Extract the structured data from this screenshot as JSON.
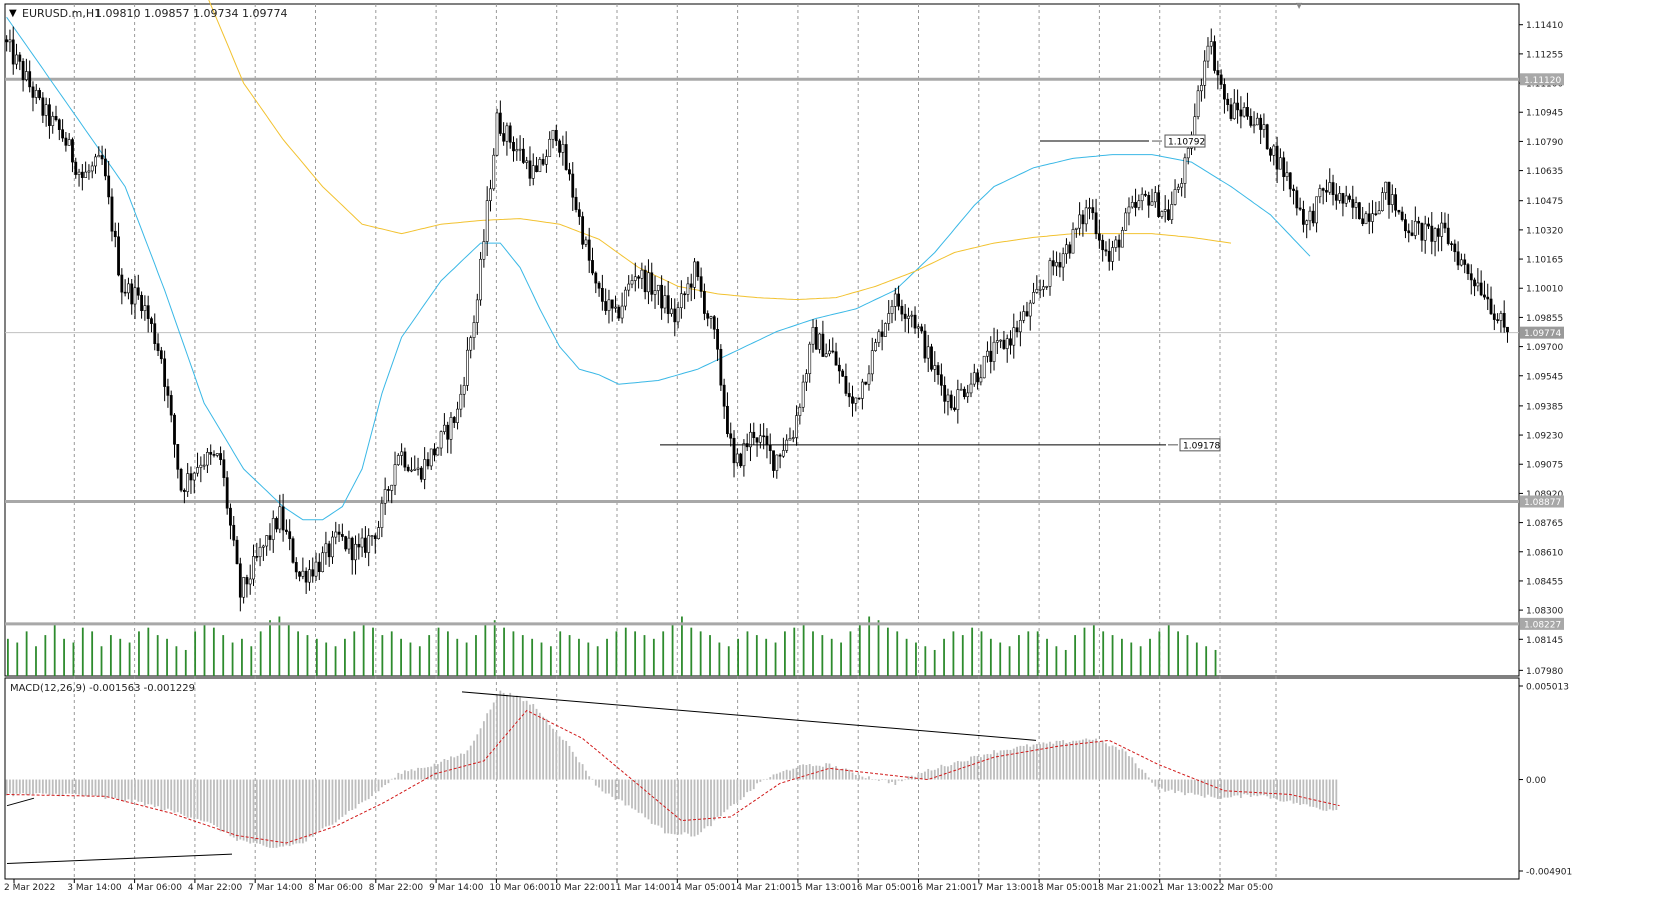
{
  "header": {
    "symbol_label": "EURUSD.m,H1",
    "ohlc_label": "1.09810 1.09857 1.09734 1.09774"
  },
  "indicator": {
    "macd_label": "MACD(12,26,9) -0.001563 -0.001229"
  },
  "colors": {
    "background": "#ffffff",
    "grid": "#9a9a9a",
    "bull_candle": "#ffffff",
    "bear_candle": "#000000",
    "candle_outline": "#000000",
    "ma_fast": "#3ab8e6",
    "ma_slow": "#f2c230",
    "volume": "#2e8b2e",
    "macd_hist": "#bdbdbd",
    "macd_signal": "#d11a1a",
    "hline": "#a8a8a8",
    "trendline": "#000000"
  },
  "chart_data": [
    {
      "type": "candlestick",
      "symbol": "EURUSD.m",
      "timeframe": "H1",
      "price_axis": {
        "ylim": [
          1.0795,
          1.1152
        ],
        "tick_labels": [
          "1.11410",
          "1.11255",
          "1.11100",
          "1.10945",
          "1.10790",
          "1.10635",
          "1.10475",
          "1.10320",
          "1.10165",
          "1.10010",
          "1.09855",
          "1.09700",
          "1.09545",
          "1.09385",
          "1.09230",
          "1.09075",
          "1.08920",
          "1.08765",
          "1.08610",
          "1.08455",
          "1.08300",
          "1.08145",
          "1.07980"
        ]
      },
      "time_axis": {
        "tick_labels": [
          "2 Mar 2022",
          "3 Mar 14:00",
          "4 Mar 06:00",
          "4 Mar 22:00",
          "7 Mar 14:00",
          "8 Mar 06:00",
          "8 Mar 22:00",
          "9 Mar 14:00",
          "10 Mar 06:00",
          "10 Mar 22:00",
          "11 Mar 14:00",
          "14 Mar 05:00",
          "14 Mar 21:00",
          "15 Mar 13:00",
          "16 Mar 05:00",
          "16 Mar 21:00",
          "17 Mar 13:00",
          "18 Mar 05:00",
          "18 Mar 21:00",
          "21 Mar 13:00",
          "22 Mar 05:00"
        ],
        "grid": "dashed-vertical"
      },
      "current_price": "1.09774",
      "horizontal_levels": [
        {
          "price": 1.1112,
          "label": "1.11120"
        },
        {
          "price": 1.08877,
          "label": "1.08877"
        },
        {
          "price": 1.08227,
          "label": "1.08227"
        }
      ],
      "price_labels": [
        {
          "price": 1.10792,
          "label": "1.10792"
        },
        {
          "price": 1.09178,
          "label": "1.09178"
        }
      ],
      "path": [
        [
          0,
          1.1133
        ],
        [
          6,
          1.1115
        ],
        [
          12,
          1.1095
        ],
        [
          18,
          1.1082
        ],
        [
          24,
          1.106
        ],
        [
          30,
          1.1068
        ],
        [
          36,
          1.1002
        ],
        [
          42,
          1.0995
        ],
        [
          48,
          1.0965
        ],
        [
          54,
          1.0895
        ],
        [
          60,
          1.091
        ],
        [
          66,
          1.091
        ],
        [
          72,
          1.0838
        ],
        [
          78,
          1.086
        ],
        [
          84,
          1.088
        ],
        [
          90,
          1.0848
        ],
        [
          96,
          1.0855
        ],
        [
          102,
          1.0868
        ],
        [
          108,
          1.086
        ],
        [
          114,
          1.0875
        ],
        [
          120,
          1.0915
        ],
        [
          126,
          1.0903
        ],
        [
          132,
          1.0917
        ],
        [
          138,
          1.0935
        ],
        [
          144,
          1.0995
        ],
        [
          150,
          1.109
        ],
        [
          156,
          1.1075
        ],
        [
          162,
          1.106
        ],
        [
          168,
          1.1085
        ],
        [
          174,
          1.1045
        ],
        [
          180,
          1.1
        ],
        [
          186,
          1.0985
        ],
        [
          192,
          1.101
        ],
        [
          198,
          1.1
        ],
        [
          204,
          1.0985
        ],
        [
          210,
          1.101
        ],
        [
          216,
          1.0975
        ],
        [
          222,
          1.0905
        ],
        [
          228,
          1.0925
        ],
        [
          234,
          1.091
        ],
        [
          240,
          1.0925
        ],
        [
          246,
          1.0975
        ],
        [
          252,
          1.0965
        ],
        [
          258,
          1.0938
        ],
        [
          264,
          1.0965
        ],
        [
          270,
          1.0995
        ],
        [
          276,
          1.0988
        ],
        [
          282,
          1.096
        ],
        [
          288,
          1.094
        ],
        [
          294,
          1.0952
        ],
        [
          300,
          1.0965
        ],
        [
          306,
          1.0975
        ],
        [
          312,
          1.099
        ],
        [
          318,
          1.101
        ],
        [
          324,
          1.1025
        ],
        [
          330,
          1.1045
        ],
        [
          336,
          1.1015
        ],
        [
          342,
          1.104
        ],
        [
          348,
          1.105
        ],
        [
          354,
          1.104
        ],
        [
          360,
          1.107
        ],
        [
          366,
          1.1135
        ],
        [
          372,
          1.1095
        ],
        [
          378,
          1.1095
        ],
        [
          384,
          1.108
        ],
        [
          390,
          1.106
        ],
        [
          396,
          1.1035
        ],
        [
          402,
          1.1055
        ],
        [
          408,
          1.1045
        ],
        [
          414,
          1.104
        ],
        [
          420,
          1.1052
        ],
        [
          426,
          1.1035
        ],
        [
          432,
          1.103
        ],
        [
          438,
          1.103
        ],
        [
          444,
          1.1012
        ],
        [
          450,
          1.1
        ],
        [
          456,
          1.0978
        ]
      ],
      "ma_fast_path": [
        [
          0,
          1.1145
        ],
        [
          18,
          1.11
        ],
        [
          36,
          1.1055
        ],
        [
          48,
          1.1
        ],
        [
          60,
          1.094
        ],
        [
          72,
          1.0905
        ],
        [
          84,
          1.0885
        ],
        [
          90,
          1.0878
        ],
        [
          96,
          1.0878
        ],
        [
          102,
          1.0885
        ],
        [
          108,
          1.0905
        ],
        [
          114,
          1.0945
        ],
        [
          120,
          1.0975
        ],
        [
          132,
          1.1005
        ],
        [
          144,
          1.1025
        ],
        [
          150,
          1.1025
        ],
        [
          156,
          1.1012
        ],
        [
          162,
          1.099
        ],
        [
          168,
          1.097
        ],
        [
          174,
          1.0958
        ],
        [
          180,
          1.0955
        ],
        [
          186,
          1.095
        ],
        [
          198,
          1.0952
        ],
        [
          210,
          1.0958
        ],
        [
          222,
          1.0968
        ],
        [
          234,
          1.0978
        ],
        [
          246,
          1.0985
        ],
        [
          258,
          1.099
        ],
        [
          270,
          1.1
        ],
        [
          282,
          1.102
        ],
        [
          294,
          1.1045
        ],
        [
          300,
          1.1055
        ],
        [
          312,
          1.1065
        ],
        [
          324,
          1.107
        ],
        [
          336,
          1.1072
        ],
        [
          348,
          1.1072
        ],
        [
          360,
          1.1068
        ],
        [
          372,
          1.1055
        ],
        [
          384,
          1.104
        ],
        [
          396,
          1.1018
        ]
      ],
      "ma_slow_path": [
        [
          60,
          1.116
        ],
        [
          72,
          1.111
        ],
        [
          84,
          1.108
        ],
        [
          96,
          1.1055
        ],
        [
          108,
          1.1035
        ],
        [
          120,
          1.103
        ],
        [
          132,
          1.1035
        ],
        [
          144,
          1.1037
        ],
        [
          156,
          1.1038
        ],
        [
          168,
          1.1035
        ],
        [
          180,
          1.1027
        ],
        [
          192,
          1.1012
        ],
        [
          204,
          1.1002
        ],
        [
          216,
          1.0998
        ],
        [
          228,
          1.0996
        ],
        [
          240,
          1.0995
        ],
        [
          252,
          1.0996
        ],
        [
          264,
          1.1002
        ],
        [
          276,
          1.101
        ],
        [
          288,
          1.102
        ],
        [
          300,
          1.1025
        ],
        [
          312,
          1.1028
        ],
        [
          324,
          1.103
        ],
        [
          336,
          1.103
        ],
        [
          348,
          1.103
        ],
        [
          360,
          1.1028
        ],
        [
          372,
          1.1025
        ]
      ],
      "volume_values": [
        10,
        9,
        12,
        8,
        11,
        14,
        10,
        9,
        13,
        12,
        8,
        11,
        10,
        9,
        12,
        13,
        11,
        10,
        8,
        7,
        12,
        14,
        13,
        11,
        9,
        10,
        8,
        12,
        15,
        16,
        14,
        12,
        11,
        10,
        9,
        8,
        10,
        12,
        14,
        13,
        11,
        12,
        10,
        9,
        8,
        11,
        13,
        12,
        10,
        9,
        11,
        14,
        15,
        13,
        12,
        11,
        10,
        9,
        8,
        12,
        11,
        10,
        9,
        8,
        10,
        12,
        13,
        12,
        11,
        10,
        12,
        14,
        16,
        13,
        12,
        11,
        9,
        8,
        10,
        12,
        11,
        10,
        9,
        12,
        13,
        14,
        12,
        11,
        10,
        9,
        12,
        14,
        16,
        15,
        13,
        12,
        10,
        9,
        8,
        7,
        10,
        12,
        11,
        13,
        12,
        10,
        9,
        8,
        11,
        12,
        12,
        10,
        8,
        7,
        11,
        13,
        14,
        12,
        11,
        10,
        9,
        8,
        10,
        12,
        14,
        12,
        11,
        9,
        8,
        7
      ]
    },
    {
      "type": "histogram",
      "name": "MACD(12,26,9)",
      "values_label": "-0.001563 -0.001229",
      "ylim": [
        -0.004901,
        0.005013
      ],
      "tick_labels": [
        "0.005013",
        "0.00",
        "-0.004901"
      ],
      "macd_hist_path": [
        [
          0,
          -0.0008
        ],
        [
          20,
          -0.0008
        ],
        [
          40,
          -0.0012
        ],
        [
          60,
          -0.0022
        ],
        [
          70,
          -0.0032
        ],
        [
          80,
          -0.0037
        ],
        [
          90,
          -0.0034
        ],
        [
          100,
          -0.0022
        ],
        [
          110,
          -0.001
        ],
        [
          120,
          0.0004
        ],
        [
          130,
          0.0008
        ],
        [
          140,
          0.0015
        ],
        [
          150,
          0.0048
        ],
        [
          160,
          0.004
        ],
        [
          170,
          0.002
        ],
        [
          180,
          -0.0005
        ],
        [
          190,
          -0.0015
        ],
        [
          200,
          -0.0028
        ],
        [
          210,
          -0.003
        ],
        [
          220,
          -0.0015
        ],
        [
          230,
          0.0
        ],
        [
          240,
          0.0007
        ],
        [
          250,
          0.0008
        ],
        [
          260,
          0.0002
        ],
        [
          270,
          -0.0002
        ],
        [
          280,
          0.0005
        ],
        [
          290,
          0.001
        ],
        [
          300,
          0.0015
        ],
        [
          310,
          0.0018
        ],
        [
          320,
          0.002
        ],
        [
          330,
          0.0022
        ],
        [
          340,
          0.0015
        ],
        [
          350,
          -0.0005
        ],
        [
          360,
          -0.0008
        ],
        [
          370,
          -0.001
        ],
        [
          380,
          -0.0008
        ],
        [
          390,
          -0.0012
        ],
        [
          400,
          -0.0016
        ]
      ],
      "signal_path": [
        [
          0,
          -0.0008
        ],
        [
          30,
          -0.0009
        ],
        [
          50,
          -0.0018
        ],
        [
          70,
          -0.003
        ],
        [
          85,
          -0.0034
        ],
        [
          100,
          -0.0025
        ],
        [
          115,
          -0.0012
        ],
        [
          130,
          0.0003
        ],
        [
          145,
          0.001
        ],
        [
          158,
          0.0037
        ],
        [
          175,
          0.0022
        ],
        [
          190,
          0.0
        ],
        [
          205,
          -0.0022
        ],
        [
          220,
          -0.002
        ],
        [
          235,
          -0.0002
        ],
        [
          250,
          0.0006
        ],
        [
          265,
          0.0003
        ],
        [
          280,
          0.0
        ],
        [
          300,
          0.0012
        ],
        [
          320,
          0.0018
        ],
        [
          335,
          0.0021
        ],
        [
          350,
          0.0008
        ],
        [
          370,
          -0.0006
        ],
        [
          390,
          -0.0008
        ],
        [
          405,
          -0.0014
        ]
      ]
    }
  ]
}
